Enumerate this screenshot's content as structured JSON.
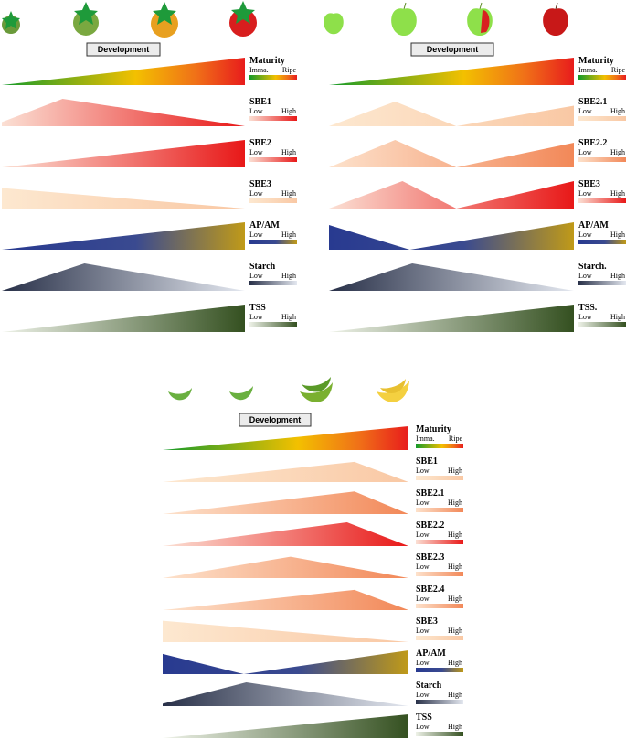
{
  "panels": [
    {
      "development": "Development",
      "rows": [
        {
          "name": "Maturity",
          "low": "Imma.",
          "high": "Ripe"
        },
        {
          "name": "SBE1",
          "low": "Low",
          "high": "High"
        },
        {
          "name": "SBE2",
          "low": "Low",
          "high": "High"
        },
        {
          "name": "SBE3",
          "low": "Low",
          "high": "High"
        },
        {
          "name": "AP/AM",
          "low": "Low",
          "high": "High"
        },
        {
          "name": "Starch",
          "low": "Low",
          "high": "High"
        },
        {
          "name": "TSS",
          "low": "Low",
          "high": "High"
        }
      ]
    },
    {
      "development": "Development",
      "rows": [
        {
          "name": "Maturity",
          "low": "Imma.",
          "high": "Ripe"
        },
        {
          "name": "SBE2.1",
          "low": "Low",
          "high": "High"
        },
        {
          "name": "SBE2.2",
          "low": "Low",
          "high": "High"
        },
        {
          "name": "SBE3",
          "low": "Low",
          "high": "High"
        },
        {
          "name": "AP/AM",
          "low": "Low",
          "high": "High"
        },
        {
          "name": "Starch.",
          "low": "Low",
          "high": "High"
        },
        {
          "name": "TSS.",
          "low": "Low",
          "high": "High"
        }
      ]
    },
    {
      "development": "Development",
      "rows": [
        {
          "name": "Maturity",
          "low": "Imma.",
          "high": "Ripe"
        },
        {
          "name": "SBE1",
          "low": "Low",
          "high": "High"
        },
        {
          "name": "SBE2.1",
          "low": "Low",
          "high": "High"
        },
        {
          "name": "SBE2.2",
          "low": "Low",
          "high": "High"
        },
        {
          "name": "SBE2.3",
          "low": "Low",
          "high": "High"
        },
        {
          "name": "SBE2.4",
          "low": "Low",
          "high": "High"
        },
        {
          "name": "SBE3",
          "low": "Low",
          "high": "High"
        },
        {
          "name": "AP/AM",
          "low": "Low",
          "high": "High"
        },
        {
          "name": "Starch",
          "low": "Low",
          "high": "High"
        },
        {
          "name": "TSS",
          "low": "Low",
          "high": "High"
        }
      ]
    }
  ]
}
